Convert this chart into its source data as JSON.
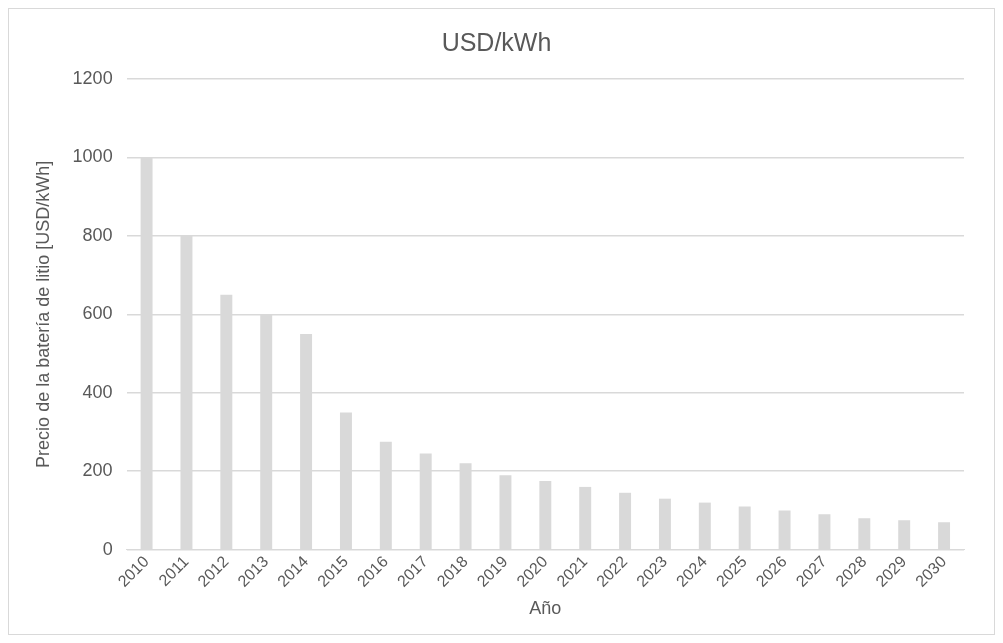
{
  "chart_data": {
    "type": "bar",
    "title": "USD/kWh",
    "xlabel": "Año",
    "ylabel": "Precio de la batería de litio [USD/kWh]",
    "categories": [
      "2010",
      "2011",
      "2012",
      "2013",
      "2014",
      "2015",
      "2016",
      "2017",
      "2018",
      "2019",
      "2020",
      "2021",
      "2022",
      "2023",
      "2024",
      "2025",
      "2026",
      "2027",
      "2028",
      "2029",
      "2030"
    ],
    "values": [
      1000,
      800,
      650,
      600,
      550,
      350,
      275,
      245,
      220,
      190,
      175,
      160,
      145,
      130,
      120,
      110,
      100,
      90,
      80,
      75,
      70
    ],
    "color": "#d9d9d9",
    "ylim": [
      0,
      1200
    ],
    "yticks": [
      0,
      200,
      400,
      600,
      800,
      1000,
      1200
    ],
    "grid": "y",
    "legend": false
  }
}
